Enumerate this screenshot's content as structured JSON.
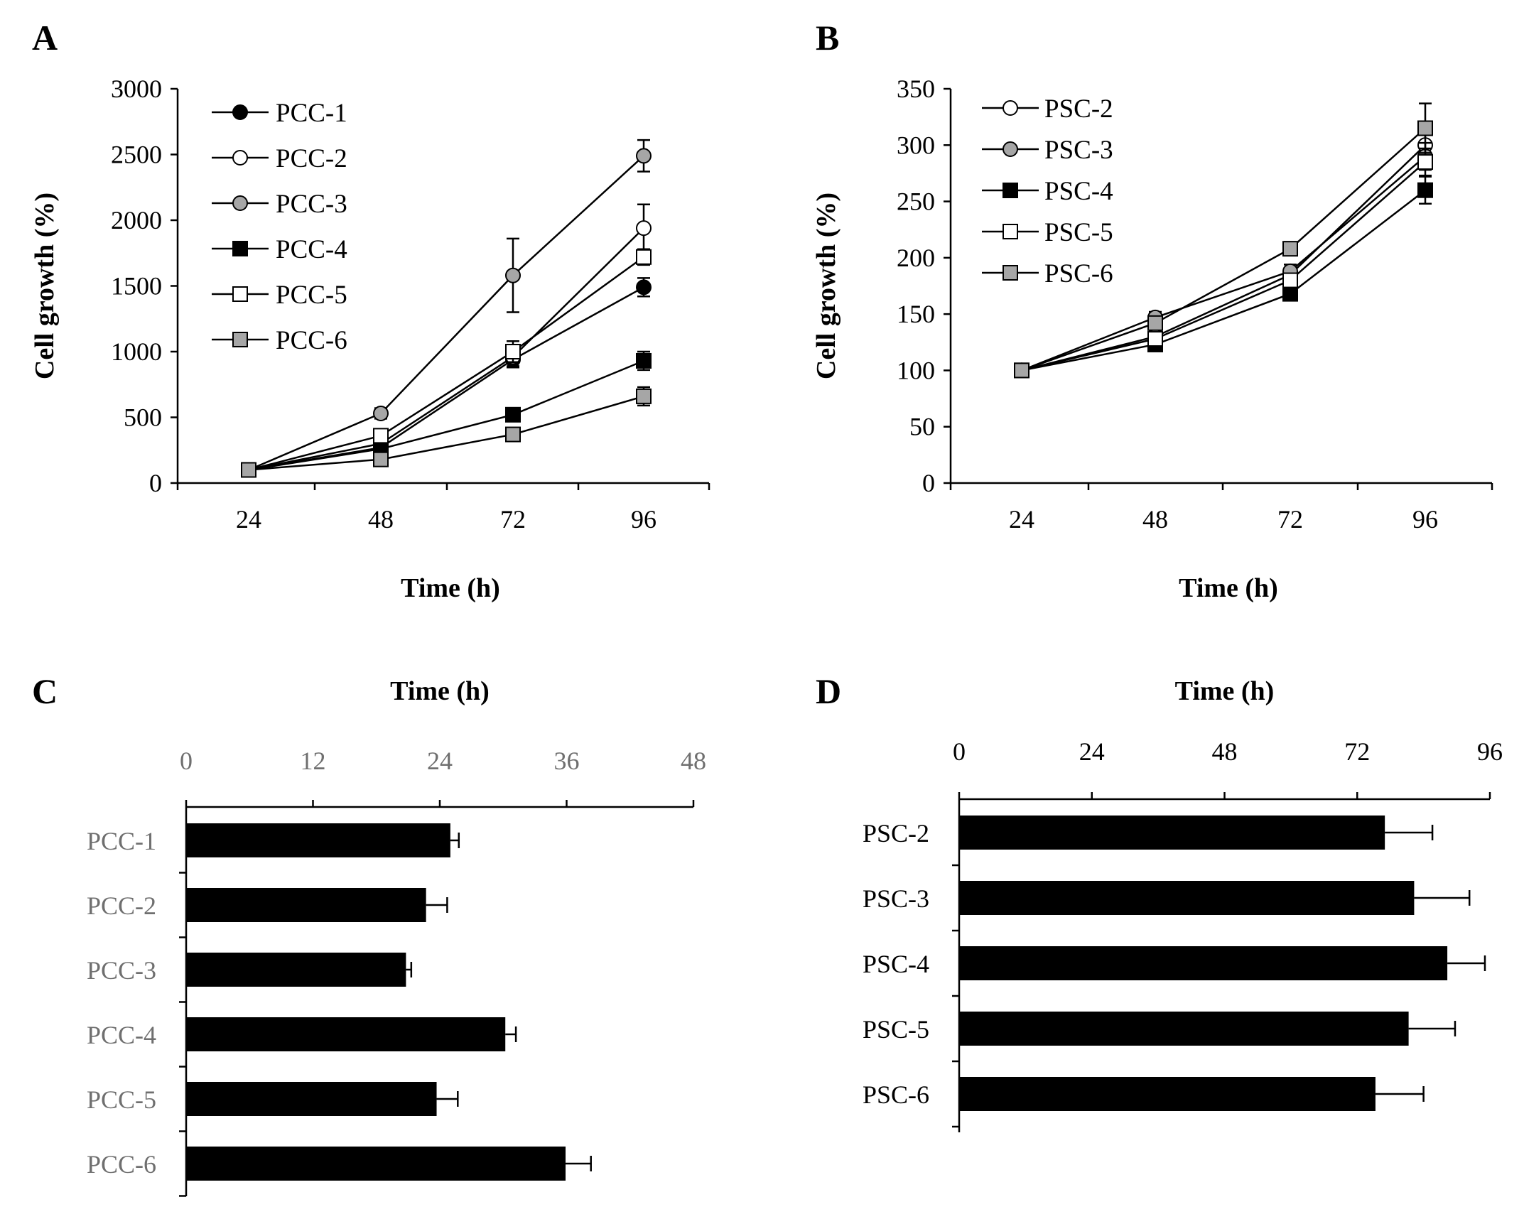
{
  "figure": {
    "panels": [
      "A",
      "B",
      "C",
      "D"
    ]
  },
  "chart_data": [
    {
      "id": "A",
      "type": "line",
      "panel_label": "A",
      "xlabel": "Time (h)",
      "ylabel": "Cell growth (%)",
      "x": [
        24,
        48,
        72,
        96
      ],
      "x_tick_labels": [
        "24",
        "48",
        "72",
        "96"
      ],
      "ylim": [
        0,
        3000
      ],
      "y_ticks": [
        0,
        500,
        1000,
        1500,
        2000,
        2500,
        3000
      ],
      "y_tick_labels": [
        "0",
        "500",
        "1000",
        "1500",
        "2000",
        "2500",
        "3000"
      ],
      "legend_position": "top-left",
      "series": [
        {
          "name": "PCC-1",
          "marker": "circle",
          "fill": "#000000",
          "values": [
            100,
            270,
            940,
            1490
          ],
          "errors": [
            0,
            30,
            60,
            70
          ]
        },
        {
          "name": "PCC-2",
          "marker": "circle",
          "fill": "#ffffff",
          "values": [
            100,
            300,
            960,
            1940
          ],
          "errors": [
            0,
            30,
            70,
            180
          ]
        },
        {
          "name": "PCC-3",
          "marker": "circle",
          "fill": "#a6a6a6",
          "values": [
            100,
            530,
            1580,
            2490
          ],
          "errors": [
            0,
            40,
            280,
            120
          ]
        },
        {
          "name": "PCC-4",
          "marker": "square",
          "fill": "#000000",
          "values": [
            100,
            260,
            520,
            930
          ],
          "errors": [
            0,
            30,
            50,
            70
          ]
        },
        {
          "name": "PCC-5",
          "marker": "square",
          "fill": "#ffffff",
          "values": [
            100,
            360,
            1000,
            1720
          ],
          "errors": [
            0,
            40,
            80,
            60
          ]
        },
        {
          "name": "PCC-6",
          "marker": "square",
          "fill": "#a6a6a6",
          "values": [
            100,
            180,
            370,
            660
          ],
          "errors": [
            0,
            30,
            50,
            70
          ]
        }
      ]
    },
    {
      "id": "B",
      "type": "line",
      "panel_label": "B",
      "xlabel": "Time (h)",
      "ylabel": "Cell growth (%)",
      "x": [
        24,
        48,
        72,
        96
      ],
      "x_tick_labels": [
        "24",
        "48",
        "72",
        "96"
      ],
      "ylim": [
        0,
        350
      ],
      "y_ticks": [
        0,
        50,
        100,
        150,
        200,
        250,
        300,
        350
      ],
      "y_tick_labels": [
        "0",
        "50",
        "100",
        "150",
        "200",
        "250",
        "300",
        "350"
      ],
      "legend_position": "top-left",
      "series": [
        {
          "name": "PSC-2",
          "marker": "circle",
          "fill": "#ffffff",
          "values": [
            100,
            130,
            185,
            300
          ],
          "errors": [
            0,
            5,
            6,
            12
          ]
        },
        {
          "name": "PSC-3",
          "marker": "circle",
          "fill": "#a6a6a6",
          "values": [
            100,
            147,
            188,
            290
          ],
          "errors": [
            0,
            5,
            6,
            12
          ]
        },
        {
          "name": "PSC-4",
          "marker": "square",
          "fill": "#000000",
          "values": [
            100,
            123,
            168,
            260
          ],
          "errors": [
            0,
            5,
            6,
            12
          ]
        },
        {
          "name": "PSC-5",
          "marker": "square",
          "fill": "#ffffff",
          "values": [
            100,
            128,
            180,
            285
          ],
          "errors": [
            0,
            5,
            6,
            12
          ]
        },
        {
          "name": "PSC-6",
          "marker": "square",
          "fill": "#a6a6a6",
          "values": [
            100,
            142,
            208,
            315
          ],
          "errors": [
            0,
            5,
            6,
            22
          ]
        }
      ]
    },
    {
      "id": "C",
      "type": "bar",
      "orientation": "horizontal",
      "panel_label": "C",
      "xlabel": "Time (h)",
      "xlim": [
        0,
        48
      ],
      "x_ticks": [
        0,
        12,
        24,
        36,
        48
      ],
      "x_tick_labels": [
        "0",
        "12",
        "24",
        "36",
        "48"
      ],
      "categories": [
        "PCC-1",
        "PCC-2",
        "PCC-3",
        "PCC-4",
        "PCC-5",
        "PCC-6"
      ],
      "values": [
        25,
        22.7,
        20.8,
        30.2,
        23.7,
        35.9
      ],
      "errors": [
        0.8,
        2.0,
        0.5,
        1.0,
        2.0,
        2.4
      ]
    },
    {
      "id": "D",
      "type": "bar",
      "orientation": "horizontal",
      "panel_label": "D",
      "xlabel": "Time (h)",
      "xlim": [
        0,
        96
      ],
      "x_ticks": [
        0,
        24,
        48,
        72,
        96
      ],
      "x_tick_labels": [
        "0",
        "24",
        "48",
        "72",
        "96"
      ],
      "categories": [
        "PSC-2",
        "PSC-3",
        "PSC-4",
        "PSC-5",
        "PSC-6"
      ],
      "values": [
        77,
        82.3,
        88.3,
        81.3,
        75.3
      ],
      "errors": [
        8.6,
        10.0,
        6.8,
        8.4,
        8.7
      ]
    }
  ]
}
